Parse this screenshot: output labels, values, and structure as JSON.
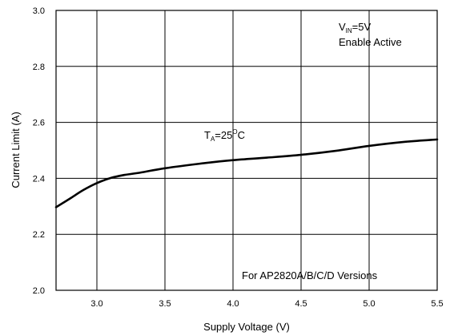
{
  "chart_data": {
    "type": "line",
    "xlabel": "Supply Voltage (V)",
    "ylabel": "Current Limit (A)",
    "xlim": [
      2.7,
      5.5
    ],
    "ylim": [
      2.0,
      3.0
    ],
    "x_ticks": [
      "3.0",
      "3.5",
      "4.0",
      "4.5",
      "5.0",
      "5.5"
    ],
    "y_ticks": [
      "2.0",
      "2.2",
      "2.4",
      "2.6",
      "2.8",
      "3.0"
    ],
    "grid": true,
    "annotations": {
      "vin_main": "V",
      "vin_sub": "IN",
      "vin_value": "=5V",
      "enable": "Enable Active",
      "ta_main": "T",
      "ta_sub": "A",
      "ta_value": "=25",
      "ta_deg": "O",
      "ta_unit": "C",
      "versions": "For AP2820A/B/C/D Versions"
    },
    "series": [
      {
        "x": [
          2.7,
          2.8,
          2.9,
          3.0,
          3.1,
          3.2,
          3.3,
          3.5,
          3.75,
          4.0,
          4.25,
          4.5,
          4.75,
          5.0,
          5.25,
          5.5
        ],
        "y": [
          2.297,
          2.327,
          2.358,
          2.383,
          2.401,
          2.412,
          2.419,
          2.436,
          2.452,
          2.465,
          2.474,
          2.484,
          2.498,
          2.516,
          2.53,
          2.539
        ]
      }
    ]
  }
}
